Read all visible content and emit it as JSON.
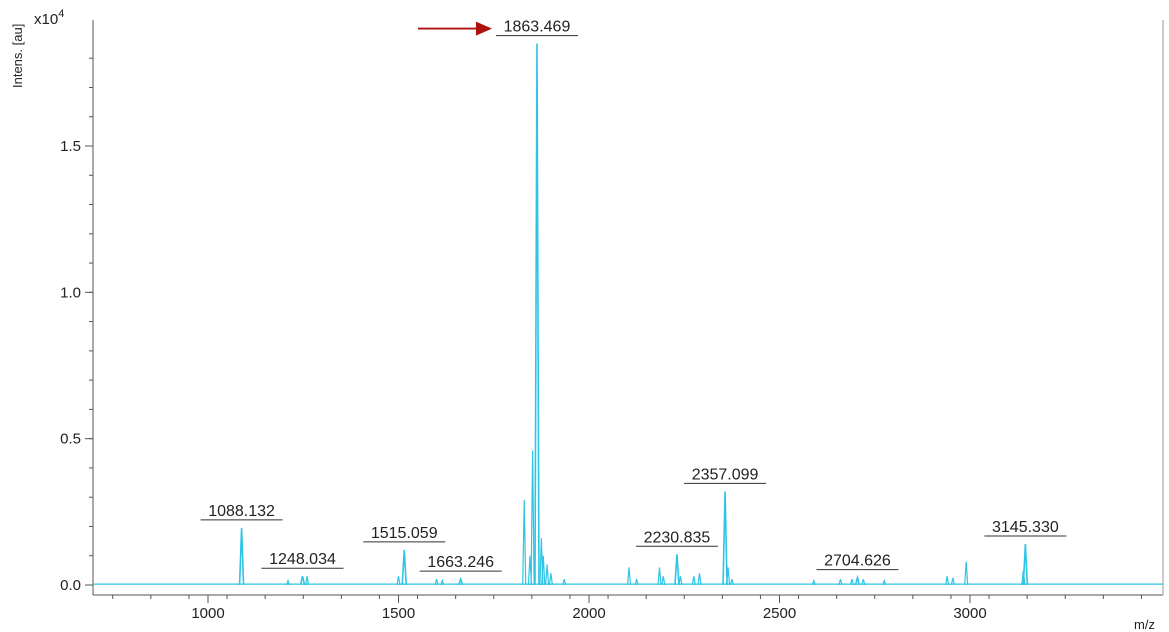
{
  "chart_data": {
    "type": "line",
    "title": "",
    "xlabel": "m/z",
    "ylabel": "Intens. [au]",
    "y_multiplier": "x10",
    "y_multiplier_exp": "4",
    "xlim": [
      700,
      3500
    ],
    "ylim": [
      0,
      1.9
    ],
    "x_ticks": [
      1000,
      1500,
      2000,
      2500,
      3000
    ],
    "x_tick_labels": [
      "1000",
      "1500",
      "2000",
      "2500",
      "3000"
    ],
    "y_ticks": [
      0.0,
      0.5,
      1.0,
      1.5
    ],
    "y_tick_labels": [
      "0.0",
      "0.5",
      "1.0",
      "1.5"
    ],
    "grid": false,
    "series_color": "#2ec4e6",
    "arrow_color": "#b01010",
    "arrow_target": "1863.469",
    "labeled_peaks": [
      {
        "x": 1088.132,
        "y": 0.195,
        "label": "1088.132"
      },
      {
        "x": 1248.034,
        "y": 0.03,
        "label": "1248.034"
      },
      {
        "x": 1515.059,
        "y": 0.12,
        "label": "1515.059"
      },
      {
        "x": 1663.246,
        "y": 0.02,
        "label": "1663.246"
      },
      {
        "x": 1863.469,
        "y": 1.85,
        "label": "1863.469"
      },
      {
        "x": 2230.835,
        "y": 0.105,
        "label": "2230.835"
      },
      {
        "x": 2357.099,
        "y": 0.32,
        "label": "2357.099"
      },
      {
        "x": 2704.626,
        "y": 0.025,
        "label": "2704.626"
      },
      {
        "x": 3145.33,
        "y": 0.14,
        "label": "3145.330"
      }
    ],
    "minor_peaks": [
      {
        "x": 1210,
        "y": 0.015
      },
      {
        "x": 1260,
        "y": 0.03
      },
      {
        "x": 1500,
        "y": 0.03
      },
      {
        "x": 1600,
        "y": 0.02
      },
      {
        "x": 1615,
        "y": 0.015
      },
      {
        "x": 1830,
        "y": 0.29
      },
      {
        "x": 1852,
        "y": 0.46
      },
      {
        "x": 1845,
        "y": 0.1
      },
      {
        "x": 1875,
        "y": 0.16
      },
      {
        "x": 1880,
        "y": 0.1
      },
      {
        "x": 1890,
        "y": 0.07
      },
      {
        "x": 1900,
        "y": 0.04
      },
      {
        "x": 1935,
        "y": 0.02
      },
      {
        "x": 2105,
        "y": 0.06
      },
      {
        "x": 2125,
        "y": 0.02
      },
      {
        "x": 2185,
        "y": 0.06
      },
      {
        "x": 2195,
        "y": 0.03
      },
      {
        "x": 2240,
        "y": 0.03
      },
      {
        "x": 2275,
        "y": 0.03
      },
      {
        "x": 2290,
        "y": 0.04
      },
      {
        "x": 2365,
        "y": 0.06
      },
      {
        "x": 2375,
        "y": 0.02
      },
      {
        "x": 2590,
        "y": 0.015
      },
      {
        "x": 2660,
        "y": 0.02
      },
      {
        "x": 2690,
        "y": 0.02
      },
      {
        "x": 2720,
        "y": 0.02
      },
      {
        "x": 2775,
        "y": 0.015
      },
      {
        "x": 2940,
        "y": 0.03
      },
      {
        "x": 2955,
        "y": 0.025
      },
      {
        "x": 2990,
        "y": 0.08
      },
      {
        "x": 3140,
        "y": 0.05
      }
    ]
  }
}
